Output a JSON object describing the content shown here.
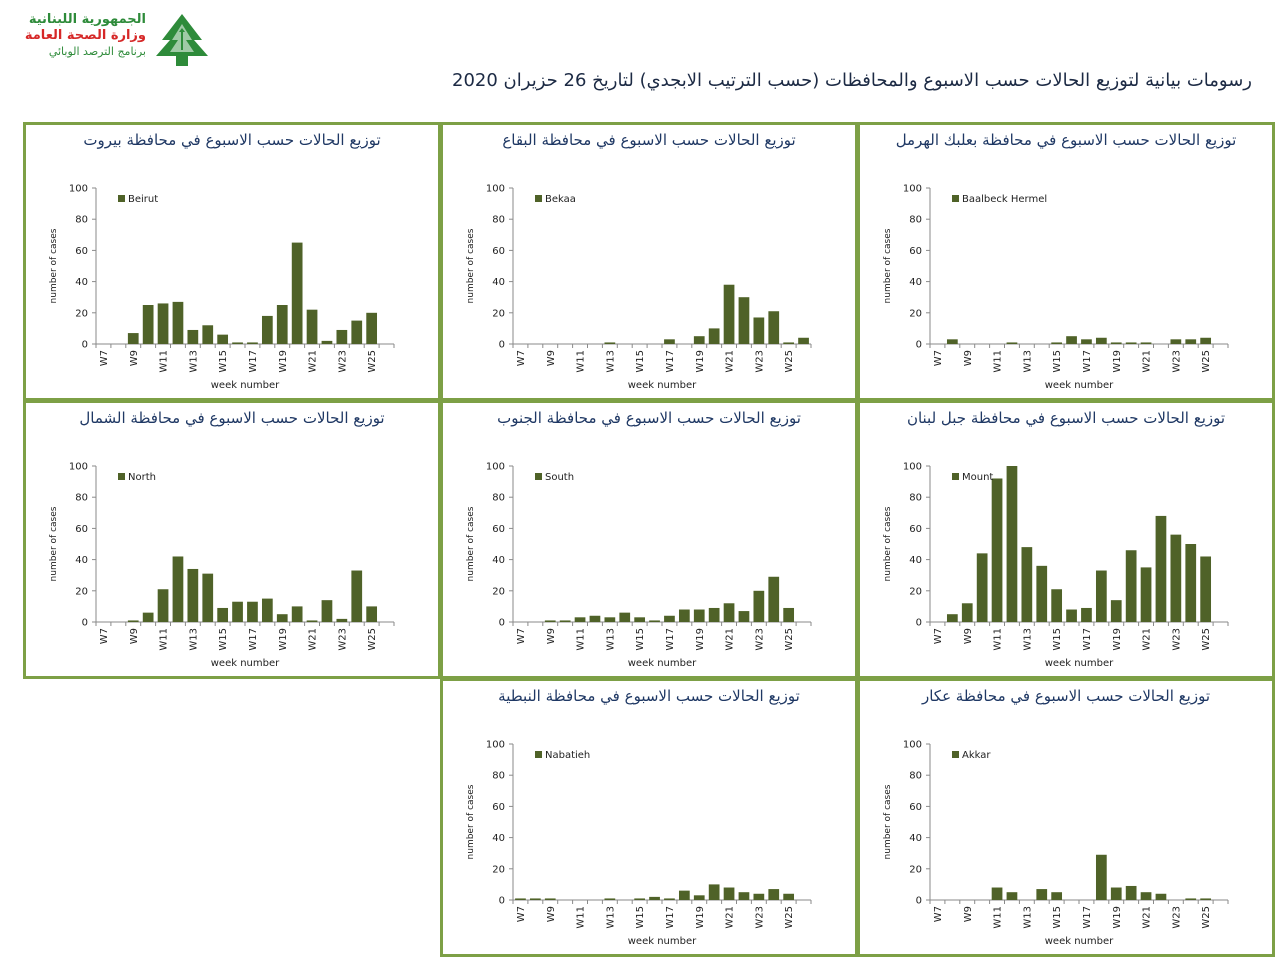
{
  "header": {
    "logo_line1": "الجمهورية اللبنانية",
    "logo_line2": "وزارة الصحة العامة",
    "logo_line3": "برنامج الترصد الوبائي",
    "logo_icon": "cedar-tree-icon",
    "title": "رسومات بيانية لتوزيع الحالات حسب الاسبوع  والمحافظات (حسب الترتيب الابجدي) لتاريخ 26 حزيران 2020"
  },
  "colors": {
    "bar": "#4f6228",
    "border": "#7da046",
    "title": "#1f3864",
    "logo_green": "#2e8b3a",
    "logo_red": "#d62828"
  },
  "chart_data": [
    {
      "type": "bar",
      "title": "توزيع الحالات حسب الاسبوع  في محافظة بيروت",
      "legend": "Beirut",
      "xlabel": "week number",
      "ylabel": "number of cases",
      "ylim": [
        0,
        100
      ],
      "yticks": [
        0,
        20,
        40,
        60,
        80,
        100
      ],
      "categories": [
        "W7",
        "W8",
        "W9",
        "W10",
        "W11",
        "W12",
        "W13",
        "W14",
        "W15",
        "W16",
        "W17",
        "W18",
        "W19",
        "W20",
        "W21",
        "W22",
        "W23",
        "W24",
        "W25",
        "W26"
      ],
      "tick_labels": [
        "W7",
        "",
        "W9",
        "",
        "W11",
        "",
        "W13",
        "",
        "W15",
        "",
        "W17",
        "",
        "W19",
        "",
        "W21",
        "",
        "W23",
        "",
        "W25",
        ""
      ],
      "values": [
        0,
        0,
        7,
        25,
        26,
        27,
        9,
        12,
        6,
        1,
        1,
        18,
        25,
        65,
        22,
        2,
        9,
        15,
        20,
        0
      ]
    },
    {
      "type": "bar",
      "title": "توزيع الحالات حسب الاسبوع  في محافظة البقاع",
      "legend": "Bekaa",
      "xlabel": "week number",
      "ylabel": "number of cases",
      "ylim": [
        0,
        100
      ],
      "yticks": [
        0,
        20,
        40,
        60,
        80,
        100
      ],
      "categories": [
        "W7",
        "W8",
        "W9",
        "W10",
        "W11",
        "W12",
        "W13",
        "W14",
        "W15",
        "W16",
        "W17",
        "W18",
        "W19",
        "W20",
        "W21",
        "W22",
        "W23",
        "W24",
        "W25",
        "W26"
      ],
      "tick_labels": [
        "W7",
        "",
        "W9",
        "",
        "W11",
        "",
        "W13",
        "",
        "W15",
        "",
        "W17",
        "",
        "W19",
        "",
        "W21",
        "",
        "W23",
        "",
        "W25",
        ""
      ],
      "values": [
        0,
        0,
        0,
        0,
        0,
        0,
        1,
        0,
        0,
        0,
        3,
        0,
        5,
        10,
        38,
        30,
        17,
        21,
        1,
        4
      ]
    },
    {
      "type": "bar",
      "title": "توزيع الحالات حسب الاسبوع  في محافظة بعلبك الهرمل",
      "legend": "Baalbeck Hermel",
      "xlabel": "week number",
      "ylabel": "number of cases",
      "ylim": [
        0,
        100
      ],
      "yticks": [
        0,
        20,
        40,
        60,
        80,
        100
      ],
      "categories": [
        "W7",
        "W8",
        "W9",
        "W10",
        "W11",
        "W12",
        "W13",
        "W14",
        "W15",
        "W16",
        "W17",
        "W18",
        "W19",
        "W20",
        "W21",
        "W22",
        "W23",
        "W24",
        "W25",
        "W26"
      ],
      "tick_labels": [
        "W7",
        "",
        "W9",
        "",
        "W11",
        "",
        "W13",
        "",
        "W15",
        "",
        "W17",
        "",
        "W19",
        "",
        "W21",
        "",
        "W23",
        "",
        "W25",
        ""
      ],
      "values": [
        0,
        3,
        0,
        0,
        0,
        1,
        0,
        0,
        1,
        5,
        3,
        4,
        1,
        1,
        1,
        0,
        3,
        3,
        4,
        0
      ]
    },
    {
      "type": "bar",
      "title": "توزيع الحالات حسب الاسبوع  في محافظة الشمال",
      "legend": "North",
      "xlabel": "week number",
      "ylabel": "number of cases",
      "ylim": [
        0,
        100
      ],
      "yticks": [
        0,
        20,
        40,
        60,
        80,
        100
      ],
      "categories": [
        "W7",
        "W8",
        "W9",
        "W10",
        "W11",
        "W12",
        "W13",
        "W14",
        "W15",
        "W16",
        "W17",
        "W18",
        "W19",
        "W20",
        "W21",
        "W22",
        "W23",
        "W24",
        "W25",
        "W26"
      ],
      "tick_labels": [
        "W7",
        "",
        "W9",
        "",
        "W11",
        "",
        "W13",
        "",
        "W15",
        "",
        "W17",
        "",
        "W19",
        "",
        "W21",
        "",
        "W23",
        "",
        "W25",
        ""
      ],
      "values": [
        0,
        0,
        1,
        6,
        21,
        42,
        34,
        31,
        9,
        13,
        13,
        15,
        5,
        10,
        1,
        14,
        2,
        33,
        10,
        0
      ]
    },
    {
      "type": "bar",
      "title": "توزيع الحالات حسب الاسبوع  في محافظة الجنوب",
      "legend": "South",
      "xlabel": "week number",
      "ylabel": "number of cases",
      "ylim": [
        0,
        100
      ],
      "yticks": [
        0,
        20,
        40,
        60,
        80,
        100
      ],
      "categories": [
        "W7",
        "W8",
        "W9",
        "W10",
        "W11",
        "W12",
        "W13",
        "W14",
        "W15",
        "W16",
        "W17",
        "W18",
        "W19",
        "W20",
        "W21",
        "W22",
        "W23",
        "W24",
        "W25",
        "W26"
      ],
      "tick_labels": [
        "W7",
        "",
        "W9",
        "",
        "W11",
        "",
        "W13",
        "",
        "W15",
        "",
        "W17",
        "",
        "W19",
        "",
        "W21",
        "",
        "W23",
        "",
        "W25",
        ""
      ],
      "values": [
        0,
        0,
        1,
        1,
        3,
        4,
        3,
        6,
        3,
        1,
        4,
        8,
        8,
        9,
        12,
        7,
        20,
        29,
        9,
        0
      ]
    },
    {
      "type": "bar",
      "title": "توزيع الحالات حسب الاسبوع  في محافظة جبل لبنان",
      "legend": "Mount",
      "xlabel": "week number",
      "ylabel": "number of cases",
      "ylim": [
        0,
        100
      ],
      "yticks": [
        0,
        20,
        40,
        60,
        80,
        100
      ],
      "categories": [
        "W7",
        "W8",
        "W9",
        "W10",
        "W11",
        "W12",
        "W13",
        "W14",
        "W15",
        "W16",
        "W17",
        "W18",
        "W19",
        "W20",
        "W21",
        "W22",
        "W23",
        "W24",
        "W25",
        "W26"
      ],
      "tick_labels": [
        "W7",
        "",
        "W9",
        "",
        "W11",
        "",
        "W13",
        "",
        "W15",
        "",
        "W17",
        "",
        "W19",
        "",
        "W21",
        "",
        "W23",
        "",
        "W25",
        ""
      ],
      "values": [
        0,
        5,
        12,
        44,
        92,
        100,
        48,
        36,
        21,
        8,
        9,
        33,
        14,
        46,
        35,
        68,
        56,
        50,
        42,
        0
      ]
    },
    {
      "type": "bar",
      "title": "توزيع الحالات حسب الاسبوع  في محافظة النبطية",
      "legend": "Nabatieh",
      "xlabel": "week number",
      "ylabel": "number of cases",
      "ylim": [
        0,
        100
      ],
      "yticks": [
        0,
        20,
        40,
        60,
        80,
        100
      ],
      "categories": [
        "W7",
        "W8",
        "W9",
        "W10",
        "W11",
        "W12",
        "W13",
        "W14",
        "W15",
        "W16",
        "W17",
        "W18",
        "W19",
        "W20",
        "W21",
        "W22",
        "W23",
        "W24",
        "W25",
        "W26"
      ],
      "tick_labels": [
        "W7",
        "",
        "W9",
        "",
        "W11",
        "",
        "W13",
        "",
        "W15",
        "",
        "W17",
        "",
        "W19",
        "",
        "W21",
        "",
        "W23",
        "",
        "W25",
        ""
      ],
      "values": [
        1,
        1,
        1,
        0,
        0,
        0,
        1,
        0,
        1,
        2,
        1,
        6,
        3,
        10,
        8,
        5,
        4,
        7,
        4,
        0
      ]
    },
    {
      "type": "bar",
      "title": "توزيع الحالات حسب  الاسبوع  في محافظة عكار",
      "legend": "Akkar",
      "xlabel": "week number",
      "ylabel": "number of cases",
      "ylim": [
        0,
        100
      ],
      "yticks": [
        0,
        20,
        40,
        60,
        80,
        100
      ],
      "categories": [
        "W7",
        "W8",
        "W9",
        "W10",
        "W11",
        "W12",
        "W13",
        "W14",
        "W15",
        "W16",
        "W17",
        "W18",
        "W19",
        "W20",
        "W21",
        "W22",
        "W23",
        "W24",
        "W25",
        "W26"
      ],
      "tick_labels": [
        "W7",
        "",
        "W9",
        "",
        "W11",
        "",
        "W13",
        "",
        "W15",
        "",
        "W17",
        "",
        "W19",
        "",
        "W21",
        "",
        "W23",
        "",
        "W25",
        ""
      ],
      "values": [
        0,
        0,
        0,
        0,
        8,
        5,
        0,
        7,
        5,
        0,
        0,
        29,
        8,
        9,
        5,
        4,
        0,
        1,
        1,
        0
      ]
    }
  ]
}
